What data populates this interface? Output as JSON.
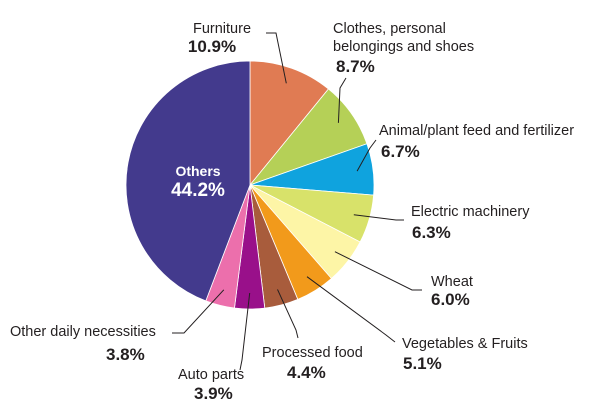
{
  "chart_data": {
    "type": "pie",
    "start": "12 o'clock",
    "direction": "clockwise",
    "slices": [
      {
        "name": "Furniture",
        "value": 10.9,
        "label": "10.9%",
        "color": "#e07b53"
      },
      {
        "name": "Clothes, personal belongings and shoes",
        "name_lines": [
          "Clothes, personal",
          "belongings and shoes"
        ],
        "value": 8.7,
        "label": "8.7%",
        "color": "#b5d057"
      },
      {
        "name": "Animal/plant feed and fertilizer",
        "value": 6.7,
        "label": "6.7%",
        "color": "#0fa3de"
      },
      {
        "name": "Electric machinery",
        "value": 6.3,
        "label": "6.3%",
        "color": "#d8e26a"
      },
      {
        "name": "Wheat",
        "value": 6.0,
        "label": "6.0%",
        "color": "#fdf5a6"
      },
      {
        "name": "Vegetables & Fruits",
        "value": 5.1,
        "label": "5.1%",
        "color": "#f29a1b"
      },
      {
        "name": "Processed food",
        "value": 4.4,
        "label": "4.4%",
        "color": "#a85c3c"
      },
      {
        "name": "Auto parts",
        "value": 3.9,
        "label": "3.9%",
        "color": "#99108a"
      },
      {
        "name": "Other daily necessities",
        "value": 3.8,
        "label": "3.8%",
        "color": "#ec6fac"
      },
      {
        "name": "Others",
        "value": 44.2,
        "label": "44.2%",
        "color": "#433a8d"
      }
    ]
  }
}
